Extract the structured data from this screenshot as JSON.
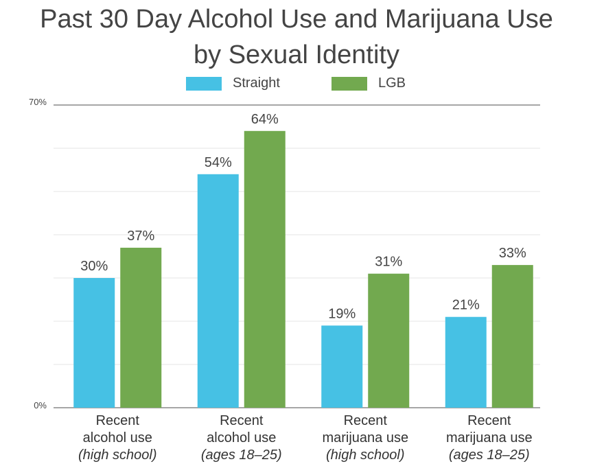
{
  "title_lines": [
    "Past 30 Day Alcohol Use and Marijuana Use",
    "by Sexual Identity"
  ],
  "colors": {
    "straight": "#46C1E4",
    "lgb": "#72A94F",
    "grid": "#e6e6e6",
    "axis": "#888888"
  },
  "chart_data": {
    "type": "bar",
    "title": "Past 30 Day Alcohol Use and Marijuana Use by Sexual Identity",
    "categories": [
      {
        "line1": "Recent",
        "line2": "alcohol use",
        "line3": "(high school)"
      },
      {
        "line1": "Recent",
        "line2": "alcohol use",
        "line3": "(ages 18–25)"
      },
      {
        "line1": "Recent",
        "line2": "marijuana use",
        "line3": "(high school)"
      },
      {
        "line1": "Recent",
        "line2": "marijuana use",
        "line3": "(ages 18–25)"
      }
    ],
    "series": [
      {
        "name": "Straight",
        "values": [
          30,
          54,
          19,
          21
        ],
        "labels": [
          "30%",
          "54%",
          "19%",
          "21%"
        ]
      },
      {
        "name": "LGB",
        "values": [
          37,
          64,
          31,
          33
        ],
        "labels": [
          "37%",
          "64%",
          "31%",
          "33%"
        ]
      }
    ],
    "ylim": [
      0,
      70
    ],
    "ytick_labels": {
      "min": "0%",
      "max": "70%"
    },
    "grid": true,
    "legend_position": "top-center"
  }
}
